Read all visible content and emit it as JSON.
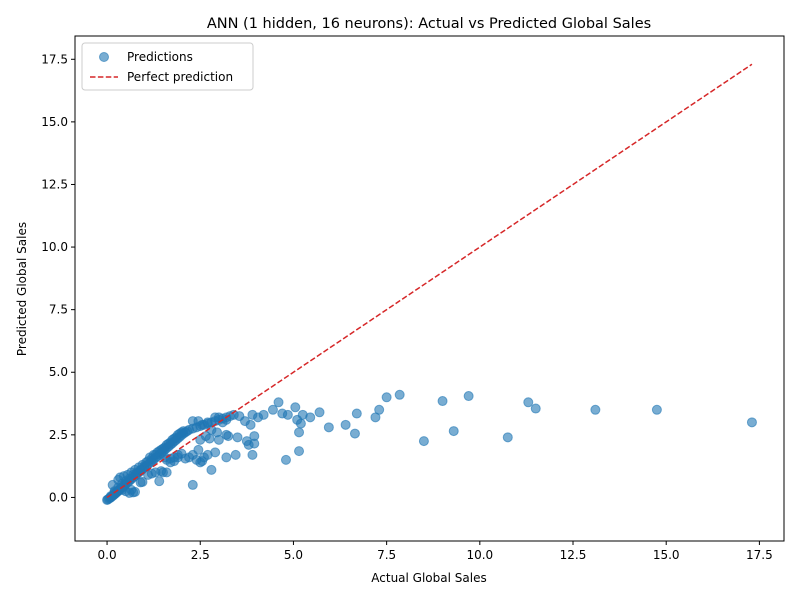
{
  "chart_data": {
    "type": "scatter",
    "title": "ANN (1 hidden, 16 neurons): Actual vs Predicted Global Sales",
    "xlabel": "Actual Global Sales",
    "ylabel": "Predicted Global Sales",
    "xlim": [
      -0.86,
      18.16
    ],
    "ylim": [
      -1.74,
      18.43
    ],
    "xticks": [
      0.0,
      2.5,
      5.0,
      7.5,
      10.0,
      12.5,
      15.0,
      17.5
    ],
    "xtick_labels": [
      "0.0",
      "2.5",
      "5.0",
      "7.5",
      "10.0",
      "12.5",
      "15.0",
      "17.5"
    ],
    "yticks": [
      0.0,
      2.5,
      5.0,
      7.5,
      10.0,
      12.5,
      15.0,
      17.5
    ],
    "ytick_labels": [
      "0.0",
      "2.5",
      "5.0",
      "7.5",
      "10.0",
      "12.5",
      "15.0",
      "17.5"
    ],
    "grid": false,
    "legend_position": "upper left",
    "series": [
      {
        "name": "Predictions",
        "kind": "scatter",
        "color": "#1f77b4",
        "alpha": 0.6,
        "points": [
          [
            0.0,
            -0.1
          ],
          [
            0.02,
            -0.08
          ],
          [
            0.05,
            -0.05
          ],
          [
            0.08,
            -0.02
          ],
          [
            0.1,
            0.0
          ],
          [
            0.12,
            0.03
          ],
          [
            0.15,
            0.06
          ],
          [
            0.18,
            0.1
          ],
          [
            0.2,
            0.13
          ],
          [
            0.23,
            0.16
          ],
          [
            0.25,
            0.2
          ],
          [
            0.28,
            0.23
          ],
          [
            0.3,
            0.26
          ],
          [
            0.33,
            0.3
          ],
          [
            0.35,
            0.33
          ],
          [
            0.38,
            0.37
          ],
          [
            0.4,
            0.4
          ],
          [
            0.43,
            0.43
          ],
          [
            0.45,
            0.47
          ],
          [
            0.48,
            0.5
          ],
          [
            0.5,
            0.53
          ],
          [
            0.55,
            0.6
          ],
          [
            0.6,
            0.66
          ],
          [
            0.65,
            0.73
          ],
          [
            0.7,
            0.8
          ],
          [
            0.75,
            0.86
          ],
          [
            0.8,
            0.93
          ],
          [
            0.85,
            0.99
          ],
          [
            0.9,
            1.06
          ],
          [
            0.95,
            1.12
          ],
          [
            1.0,
            1.19
          ],
          [
            1.05,
            1.25
          ],
          [
            1.1,
            1.32
          ],
          [
            1.15,
            1.38
          ],
          [
            1.2,
            1.45
          ],
          [
            1.25,
            1.51
          ],
          [
            1.3,
            1.58
          ],
          [
            1.35,
            1.64
          ],
          [
            1.4,
            1.71
          ],
          [
            1.45,
            1.77
          ],
          [
            1.5,
            1.84
          ],
          [
            1.55,
            1.9
          ],
          [
            1.6,
            1.97
          ],
          [
            1.65,
            2.03
          ],
          [
            1.7,
            2.1
          ],
          [
            1.75,
            2.16
          ],
          [
            1.8,
            2.23
          ],
          [
            1.85,
            2.29
          ],
          [
            1.9,
            2.36
          ],
          [
            1.95,
            2.42
          ],
          [
            2.0,
            2.49
          ],
          [
            2.05,
            2.55
          ],
          [
            2.1,
            2.6
          ],
          [
            2.15,
            2.65
          ],
          [
            2.2,
            2.7
          ],
          [
            2.3,
            2.75
          ],
          [
            2.4,
            2.8
          ],
          [
            2.5,
            2.85
          ],
          [
            2.6,
            2.9
          ],
          [
            2.7,
            2.95
          ],
          [
            2.8,
            3.0
          ],
          [
            2.9,
            3.05
          ],
          [
            3.0,
            3.1
          ],
          [
            3.1,
            3.15
          ],
          [
            3.2,
            3.2
          ],
          [
            3.3,
            3.25
          ],
          [
            0.1,
            0.05
          ],
          [
            0.2,
            0.25
          ],
          [
            0.3,
            0.4
          ],
          [
            0.4,
            0.55
          ],
          [
            0.5,
            0.65
          ],
          [
            0.6,
            0.75
          ],
          [
            0.7,
            0.9
          ],
          [
            0.8,
            1.0
          ],
          [
            0.9,
            1.1
          ],
          [
            1.0,
            1.25
          ],
          [
            1.1,
            1.45
          ],
          [
            1.2,
            1.55
          ],
          [
            1.3,
            1.7
          ],
          [
            1.4,
            1.85
          ],
          [
            1.5,
            1.95
          ],
          [
            1.6,
            2.1
          ],
          [
            1.7,
            2.2
          ],
          [
            1.8,
            2.35
          ],
          [
            1.9,
            2.5
          ],
          [
            2.0,
            2.6
          ],
          [
            0.15,
            0.5
          ],
          [
            0.3,
            0.7
          ],
          [
            0.35,
            0.8
          ],
          [
            0.45,
            0.85
          ],
          [
            0.55,
            0.9
          ],
          [
            0.65,
            1.0
          ],
          [
            0.75,
            1.1
          ],
          [
            0.85,
            1.2
          ],
          [
            0.95,
            1.3
          ],
          [
            1.05,
            1.4
          ],
          [
            1.15,
            1.6
          ],
          [
            1.25,
            1.7
          ],
          [
            1.35,
            1.8
          ],
          [
            1.45,
            1.9
          ],
          [
            1.55,
            2.0
          ],
          [
            1.65,
            2.15
          ],
          [
            1.75,
            2.3
          ],
          [
            1.85,
            2.4
          ],
          [
            1.95,
            2.55
          ],
          [
            2.05,
            2.65
          ],
          [
            0.2,
            0.2
          ],
          [
            0.4,
            0.3
          ],
          [
            0.5,
            0.25
          ],
          [
            0.65,
            0.3
          ],
          [
            0.7,
            0.2
          ],
          [
            0.75,
            0.22
          ],
          [
            0.6,
            0.18
          ],
          [
            0.9,
            0.6
          ],
          [
            0.95,
            0.62
          ],
          [
            1.1,
            0.9
          ],
          [
            1.2,
            0.95
          ],
          [
            1.3,
            1.0
          ],
          [
            1.4,
            0.65
          ],
          [
            1.45,
            1.05
          ],
          [
            1.5,
            1.0
          ],
          [
            1.6,
            1.0
          ],
          [
            1.7,
            1.4
          ],
          [
            1.8,
            1.45
          ],
          [
            1.9,
            1.6
          ],
          [
            2.1,
            1.55
          ],
          [
            2.2,
            1.6
          ],
          [
            2.3,
            1.7
          ],
          [
            2.4,
            1.5
          ],
          [
            2.45,
            1.9
          ],
          [
            2.5,
            1.4
          ],
          [
            2.55,
            1.45
          ],
          [
            2.6,
            1.6
          ],
          [
            2.7,
            1.7
          ],
          [
            2.9,
            1.8
          ],
          [
            3.2,
            1.6
          ],
          [
            3.45,
            1.7
          ],
          [
            3.9,
            1.7
          ],
          [
            2.3,
            0.5
          ],
          [
            2.8,
            1.1
          ],
          [
            1.6,
            1.5
          ],
          [
            1.7,
            1.55
          ],
          [
            1.8,
            1.6
          ],
          [
            1.9,
            1.7
          ],
          [
            2.0,
            1.75
          ],
          [
            1.55,
            1.6
          ],
          [
            2.3,
            3.05
          ],
          [
            2.45,
            3.05
          ],
          [
            2.55,
            2.9
          ],
          [
            2.7,
            3.0
          ],
          [
            2.8,
            2.7
          ],
          [
            2.9,
            3.2
          ],
          [
            3.0,
            3.2
          ],
          [
            3.1,
            3.0
          ],
          [
            3.2,
            3.1
          ],
          [
            3.4,
            3.3
          ],
          [
            3.55,
            3.25
          ],
          [
            3.7,
            3.05
          ],
          [
            3.85,
            2.9
          ],
          [
            3.9,
            3.3
          ],
          [
            4.05,
            3.2
          ],
          [
            4.2,
            3.3
          ],
          [
            4.45,
            3.5
          ],
          [
            4.6,
            3.8
          ],
          [
            4.7,
            3.35
          ],
          [
            4.85,
            3.3
          ],
          [
            5.05,
            3.6
          ],
          [
            5.1,
            3.1
          ],
          [
            5.2,
            2.95
          ],
          [
            5.25,
            3.3
          ],
          [
            5.45,
            3.2
          ],
          [
            5.7,
            3.4
          ],
          [
            5.95,
            2.8
          ],
          [
            6.4,
            2.9
          ],
          [
            6.65,
            2.55
          ],
          [
            6.7,
            3.35
          ],
          [
            7.2,
            3.2
          ],
          [
            7.3,
            3.5
          ],
          [
            7.5,
            4.0
          ],
          [
            7.85,
            4.1
          ],
          [
            9.0,
            3.85
          ],
          [
            9.7,
            4.05
          ],
          [
            11.3,
            3.8
          ],
          [
            11.5,
            3.55
          ],
          [
            13.1,
            3.5
          ],
          [
            14.75,
            3.5
          ],
          [
            17.3,
            3.0
          ],
          [
            8.5,
            2.25
          ],
          [
            9.3,
            2.65
          ],
          [
            10.75,
            2.4
          ],
          [
            4.8,
            1.5
          ],
          [
            5.15,
            1.85
          ],
          [
            5.15,
            2.6
          ],
          [
            3.95,
            2.45
          ],
          [
            3.95,
            2.15
          ],
          [
            3.8,
            2.1
          ],
          [
            3.75,
            2.25
          ],
          [
            3.5,
            2.4
          ],
          [
            3.2,
            2.5
          ],
          [
            3.0,
            2.3
          ],
          [
            2.75,
            2.35
          ],
          [
            2.95,
            2.6
          ],
          [
            3.25,
            2.45
          ],
          [
            2.5,
            2.3
          ],
          [
            2.65,
            2.45
          ]
        ]
      },
      {
        "name": "Perfect prediction",
        "kind": "line",
        "color": "#d62728",
        "dash": "dashed",
        "points": [
          [
            0.0,
            0.0
          ],
          [
            17.3,
            17.3
          ]
        ]
      }
    ]
  }
}
